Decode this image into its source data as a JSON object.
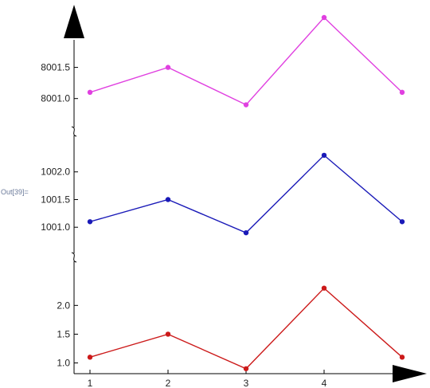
{
  "cell": {
    "out_label": "Out[39]="
  },
  "chart_data": {
    "type": "line",
    "x": [
      1,
      2,
      3,
      4,
      5
    ],
    "xticks": [
      "1",
      "2",
      "3",
      "4"
    ],
    "xlabel": "",
    "panels": [
      {
        "color": "#e040e0",
        "values": [
          8001.1,
          8001.5,
          8000.9,
          8002.3,
          8001.1
        ],
        "yticks": [
          "8001.5",
          "8001.0"
        ],
        "ytick_values": [
          8001.5,
          8001.0
        ],
        "ylim": [
          8000.6,
          8002.3
        ]
      },
      {
        "color": "#1a1ab8",
        "values": [
          1001.1,
          1001.5,
          1000.9,
          1002.3,
          1001.1
        ],
        "yticks": [
          "1002.0",
          "1001.5",
          "1001.0"
        ],
        "ytick_values": [
          1002.0,
          1001.5,
          1001.0
        ],
        "ylim": [
          1000.6,
          1002.5
        ]
      },
      {
        "color": "#cc1a1a",
        "values": [
          1.1,
          1.5,
          0.9,
          2.3,
          1.1
        ],
        "yticks": [
          "2.0",
          "1.5",
          "1.0"
        ],
        "ytick_values": [
          2.0,
          1.5,
          1.0
        ],
        "ylim": [
          0.8,
          2.6
        ]
      }
    ],
    "axis_break_marks": true,
    "arrowheads": true,
    "grid": false
  }
}
